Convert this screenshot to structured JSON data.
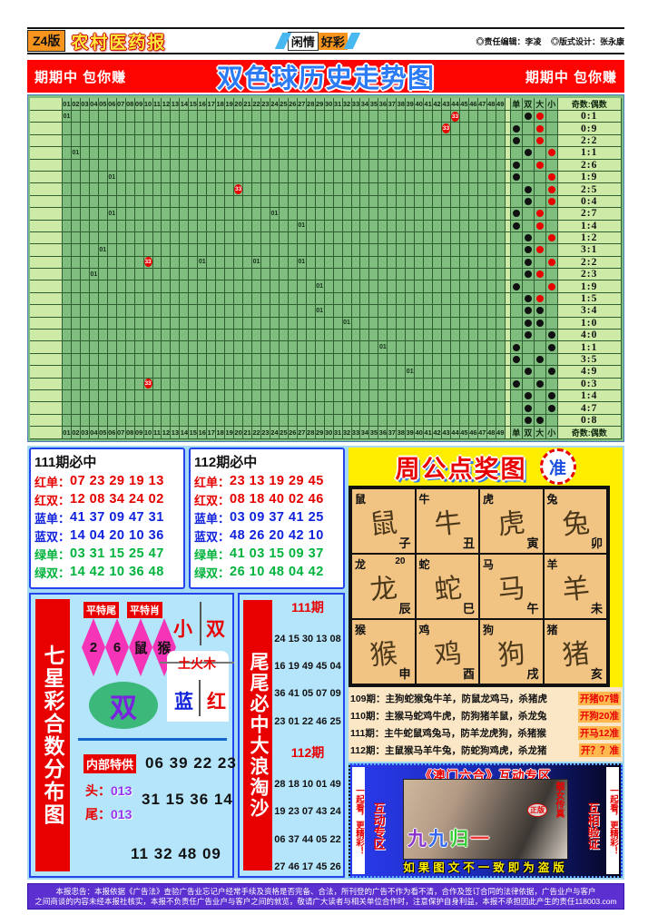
{
  "masthead": {
    "edition": "Z4版",
    "paper_name": "农村医药报",
    "badge_left": "闲情",
    "badge_right": "好彩",
    "editor": "◎责任编辑：李凌",
    "designer": "◎版式设计：张永康"
  },
  "banner": {
    "left": "期期中 包你赚",
    "title": "双色球历史走势图",
    "right": "期期中 包你赚"
  },
  "chart": {
    "type": "table",
    "col_labels": [
      "01",
      "02",
      "03",
      "04",
      "05",
      "06",
      "07",
      "08",
      "09",
      "10",
      "11",
      "12",
      "13",
      "14",
      "15",
      "16",
      "17",
      "18",
      "19",
      "20",
      "21",
      "22",
      "23",
      "24",
      "25",
      "26",
      "27",
      "28",
      "29",
      "30",
      "31",
      "32",
      "33",
      "34",
      "35",
      "36",
      "37",
      "38",
      "39",
      "40",
      "41",
      "42",
      "43",
      "44",
      "45",
      "46",
      "47",
      "48",
      "49"
    ],
    "side_headers": [
      "单",
      "双",
      "大",
      "小"
    ],
    "ratio_header": "奇数:偶数",
    "rows": [
      {
        "ratio": "0:1",
        "p": "even",
        "s": "big",
        "sc": "red",
        "marks": [
          {
            "c": 1,
            "t": "01"
          },
          {
            "c": 44,
            "t": "33",
            "r": 1
          }
        ]
      },
      {
        "ratio": "0:9",
        "p": "odd",
        "s": "big",
        "sc": "red",
        "marks": [
          {
            "c": 43,
            "t": "33",
            "r": 1
          }
        ]
      },
      {
        "ratio": "2:2",
        "p": "odd",
        "s": "big",
        "sc": "red",
        "marks": []
      },
      {
        "ratio": "1:1",
        "p": "even",
        "s": "small",
        "sc": "red",
        "marks": [
          {
            "c": 2,
            "t": "01"
          }
        ]
      },
      {
        "ratio": "2:6",
        "p": "odd",
        "s": "big",
        "sc": "red",
        "marks": []
      },
      {
        "ratio": "1:9",
        "p": "odd",
        "s": "small",
        "sc": "red",
        "marks": [
          {
            "c": 6,
            "t": "01"
          }
        ]
      },
      {
        "ratio": "2:5",
        "p": "even",
        "s": "small",
        "sc": "red",
        "marks": [
          {
            "c": 20,
            "t": "33",
            "r": 1
          }
        ]
      },
      {
        "ratio": "0:4",
        "p": "even",
        "s": "small",
        "sc": "red",
        "marks": []
      },
      {
        "ratio": "2:7",
        "p": "odd",
        "s": "big",
        "sc": "red",
        "marks": [
          {
            "c": 6,
            "t": "01"
          },
          {
            "c": 24,
            "t": "01"
          }
        ]
      },
      {
        "ratio": "1:4",
        "p": "odd",
        "s": "big",
        "sc": "red",
        "marks": [
          {
            "c": 27,
            "t": "01"
          }
        ]
      },
      {
        "ratio": "1:2",
        "p": "even",
        "s": "small",
        "sc": "red",
        "marks": []
      },
      {
        "ratio": "3:1",
        "p": "even",
        "s": "big",
        "sc": "red",
        "marks": [
          {
            "c": 5,
            "t": "01"
          }
        ]
      },
      {
        "ratio": "2:2",
        "p": "even",
        "s": "small",
        "sc": "red",
        "marks": [
          {
            "c": 10,
            "t": "33",
            "r": 1
          },
          {
            "c": 16,
            "t": "01"
          },
          {
            "c": 22,
            "t": "01"
          },
          {
            "c": 27,
            "t": "01"
          }
        ]
      },
      {
        "ratio": "2:3",
        "p": "even",
        "s": "big",
        "sc": "red",
        "marks": [
          {
            "c": 4,
            "t": "01"
          }
        ]
      },
      {
        "ratio": "1:9",
        "p": "odd",
        "s": "small",
        "sc": "red",
        "marks": [
          {
            "c": 29,
            "t": "01"
          }
        ]
      },
      {
        "ratio": "1:5",
        "p": "even",
        "s": "big",
        "sc": "red",
        "marks": []
      },
      {
        "ratio": "3:4",
        "p": "even",
        "s": "big",
        "sc": "black",
        "marks": [
          {
            "c": 29,
            "t": "01"
          }
        ]
      },
      {
        "ratio": "1:0",
        "p": "even",
        "s": "big",
        "sc": "black",
        "marks": [
          {
            "c": 32,
            "t": "01"
          }
        ]
      },
      {
        "ratio": "4:0",
        "p": "even",
        "s": "small",
        "sc": "black",
        "marks": []
      },
      {
        "ratio": "1:1",
        "p": "odd",
        "s": "small",
        "sc": "black",
        "marks": [
          {
            "c": 36,
            "t": "01"
          }
        ]
      },
      {
        "ratio": "3:5",
        "p": "odd",
        "s": "big",
        "sc": "black",
        "marks": []
      },
      {
        "ratio": "4:9",
        "p": "even",
        "s": "small",
        "sc": "black",
        "marks": [
          {
            "c": 39,
            "t": "01"
          }
        ]
      },
      {
        "ratio": "0:3",
        "p": "odd",
        "s": "big",
        "sc": "black",
        "marks": [
          {
            "c": 10,
            "t": "33",
            "r": 1
          }
        ]
      },
      {
        "ratio": "1:4",
        "p": "even",
        "s": "small",
        "sc": "black",
        "marks": []
      },
      {
        "ratio": "4:7",
        "p": "even",
        "s": "small",
        "sc": "black",
        "marks": []
      },
      {
        "ratio": "0:8",
        "p": "even",
        "s": "big",
        "sc": "black",
        "marks": []
      }
    ]
  },
  "panels": [
    {
      "title": "111期必中",
      "rows": [
        {
          "label": "红单：",
          "nums": "07 23 29 19 13",
          "c": "red"
        },
        {
          "label": "红双：",
          "nums": "12 08 34 24 02",
          "c": "red"
        },
        {
          "label": "蓝单：",
          "nums": "41 37 09 47 31",
          "c": "blue"
        },
        {
          "label": "蓝双：",
          "nums": "14 04 20 10 36",
          "c": "blue"
        },
        {
          "label": "绿单：",
          "nums": "03 31 15 25 47",
          "c": "green"
        },
        {
          "label": "绿双：",
          "nums": "14 42 10 36 48",
          "c": "green"
        }
      ]
    },
    {
      "title": "112期必中",
      "rows": [
        {
          "label": "红单：",
          "nums": "23 13 19 29 45",
          "c": "red"
        },
        {
          "label": "红双：",
          "nums": "08 18 40 02 46",
          "c": "red"
        },
        {
          "label": "蓝单：",
          "nums": "03 09 37 41 25",
          "c": "blue"
        },
        {
          "label": "蓝双：",
          "nums": "48 26 20 42 10",
          "c": "blue"
        },
        {
          "label": "绿单：",
          "nums": "41 03 15 09 37",
          "c": "green"
        },
        {
          "label": "绿双：",
          "nums": "26 10 48 04 42",
          "c": "green"
        }
      ]
    }
  ],
  "zhougong": {
    "title": "周公点奖图",
    "badge": "准",
    "zodiac": [
      {
        "animal": "鼠",
        "branch": "子",
        "note": ""
      },
      {
        "animal": "牛",
        "branch": "丑",
        "note": ""
      },
      {
        "animal": "虎",
        "branch": "寅",
        "note": ""
      },
      {
        "animal": "兔",
        "branch": "卯",
        "note": ""
      },
      {
        "animal": "龙",
        "branch": "辰",
        "note": "20"
      },
      {
        "animal": "蛇",
        "branch": "巳",
        "note": ""
      },
      {
        "animal": "马",
        "branch": "午",
        "note": ""
      },
      {
        "animal": "羊",
        "branch": "未",
        "note": ""
      },
      {
        "animal": "猴",
        "branch": "申",
        "note": ""
      },
      {
        "animal": "鸡",
        "branch": "酉",
        "note": ""
      },
      {
        "animal": "狗",
        "branch": "戌",
        "note": ""
      },
      {
        "animal": "猪",
        "branch": "亥",
        "note": ""
      }
    ],
    "predictions": [
      {
        "label": "109期：",
        "text": "主狗蛇猴兔牛羊，防鼠龙鸡马，杀猪虎",
        "result": "开猪07错"
      },
      {
        "label": "110期：",
        "text": "主猴马蛇鸡牛虎，防狗猪羊鼠，杀龙兔",
        "result": "开狗20准"
      },
      {
        "label": "111期：",
        "text": "主牛蛇鼠鸡兔马，防羊龙虎狗，杀猪猴",
        "result": "开马12准"
      },
      {
        "label": "112期：",
        "text": "主鼠猴马羊牛兔，防蛇狗鸡虎，杀龙猪",
        "result": "开？？准"
      }
    ]
  },
  "qixingcai": {
    "side_title": "七星彩合数分布图",
    "tag1": "平特尾",
    "tag2": "平特肖",
    "diamonds": [
      "2",
      "6",
      "鼠",
      "猴"
    ],
    "small_big_left": "小",
    "small_big_right": "双",
    "elements": "土火木",
    "blue_char": "蓝",
    "red_char": "红",
    "ellipse_char": "双",
    "special_tag": "内部特供",
    "special_nums": "06 39 22 23",
    "head_label": "头：",
    "head_val": "013",
    "tail_label": "尾：",
    "tail_val": "013",
    "nums_mid": "31 15 36 14",
    "nums_bottom": "11 32 48 09"
  },
  "weiwei": {
    "side_title": "尾尾必中大浪淘沙",
    "issue1": "111期",
    "rows1": [
      "24 15 30 13 08",
      "16 19 49 45 04",
      "36 41 05 07 09",
      "23 01 22 46 25"
    ],
    "issue2": "112期",
    "rows2": [
      "28 18 10 01 49",
      "19 23 07 43 24",
      "06 37 44 05 22",
      "27 46 17 45 26"
    ]
  },
  "aomen": {
    "title": "《澳门六合》互动专区",
    "strip_left": "一起看，更精彩！",
    "vert_left": "互动专区",
    "vert_right": "互相验证",
    "strip_right": "一起看，更精彩！",
    "photo_text": "九九归一",
    "photo_side": "靓女传真",
    "photo_stamp": "正版",
    "caption": "如果图文不一致即为盗版"
  },
  "disclaimer": {
    "line1": "本报忠告：本报依据《广告法》查验广告业忘记户经常手续及资格是否完备、合法，所刊登的广告不作为看不清，合作及签订合同的法律依据，广告业户与客户",
    "line2": "之间商谈的内容未经本报社核实，本报不负责任广告业户与客户之间的就览，敬请广大读者与相关单位合作时，注意保护自身利益，本报不承担因此产生的责任118003.com"
  },
  "colors": {
    "banner_red": "#fe0400",
    "title_blue": "#2b7bf5",
    "grid_green": "#7fbe7f",
    "grid_light": "#cdeaa6",
    "mark_red": "#e80000",
    "yellow": "#ffee00",
    "zodiac_tan": "#f2c483",
    "panel_blue": "#2244ee",
    "purple_bar": "#5b2fd0"
  }
}
